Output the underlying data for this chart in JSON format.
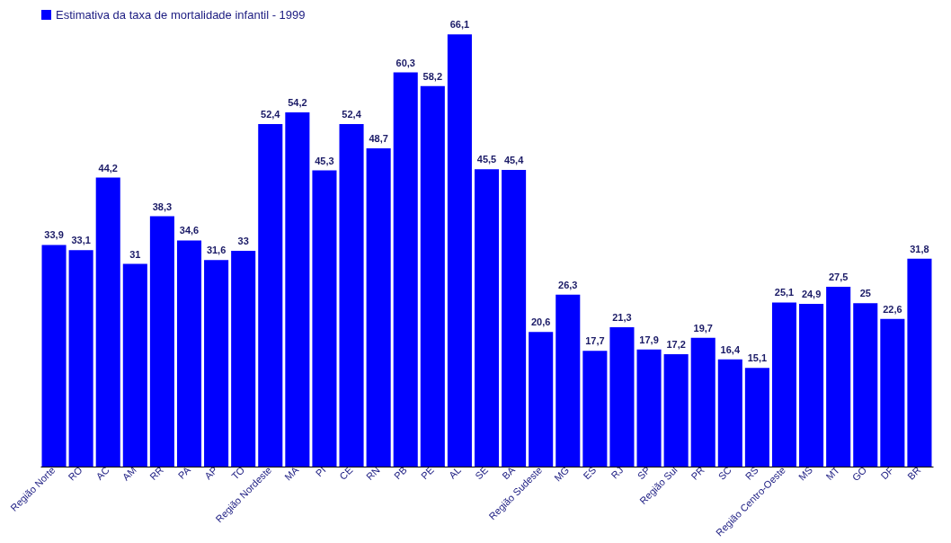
{
  "chart_data": {
    "type": "bar",
    "categories": [
      "Região Norte",
      "RO",
      "AC",
      "AM",
      "RR",
      "PA",
      "AP",
      "TO",
      "Região Nordeste",
      "MA",
      "PI",
      "CE",
      "RN",
      "PB",
      "PE",
      "AL",
      "SE",
      "BA",
      "Região Sudeste",
      "MG",
      "ES",
      "RJ",
      "SP",
      "Região Sul",
      "PR",
      "SC",
      "RS",
      "Região Centro-Oeste",
      "MS",
      "MT",
      "GO",
      "DF",
      "BR"
    ],
    "series": [
      {
        "name": "Estimativa da taxa de mortalidade infantil - 1999",
        "color": "#0000ff",
        "values": [
          33.9,
          33.1,
          44.2,
          31,
          38.3,
          34.6,
          31.6,
          33,
          52.4,
          54.2,
          45.3,
          52.4,
          48.7,
          60.3,
          58.2,
          66.1,
          45.5,
          45.4,
          20.6,
          26.3,
          17.7,
          21.3,
          17.9,
          17.2,
          19.7,
          16.4,
          15.1,
          25.1,
          24.9,
          27.5,
          25,
          22.6,
          31.8
        ],
        "value_labels": [
          "33,9",
          "33,1",
          "44,2",
          "31",
          "38,3",
          "34,6",
          "31,6",
          "33",
          "52,4",
          "54,2",
          "45,3",
          "52,4",
          "48,7",
          "60,3",
          "58,2",
          "66,1",
          "45,5",
          "45,4",
          "20,6",
          "26,3",
          "17,7",
          "21,3",
          "17,9",
          "17,2",
          "19,7",
          "16,4",
          "15,1",
          "25,1",
          "24,9",
          "27,5",
          "25",
          "22,6",
          "31,8"
        ]
      }
    ],
    "legend": "top left"
  }
}
